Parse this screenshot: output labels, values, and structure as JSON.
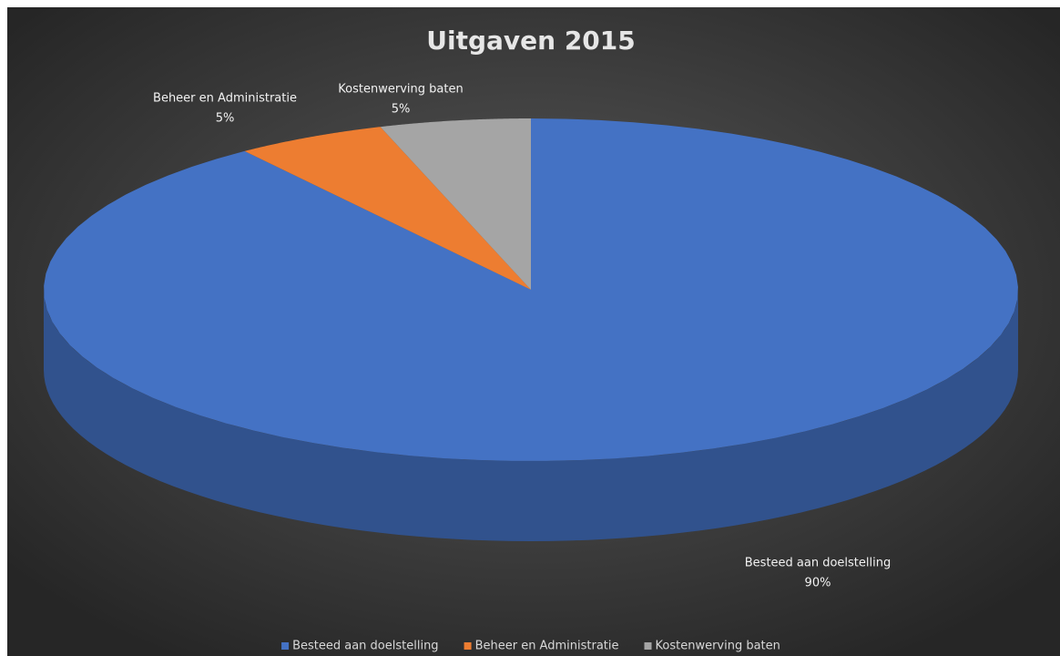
{
  "chart_data": {
    "type": "pie3d",
    "title": "Uitgaven 2015",
    "categories": [
      "Besteed aan doelstelling",
      "Beheer en Administratie",
      "Kostenwerving baten"
    ],
    "values": [
      90,
      5,
      5
    ],
    "value_labels": [
      "90%",
      "5%",
      "5%"
    ],
    "colors": [
      "#4472c4",
      "#ed7d31",
      "#a5a5a5"
    ],
    "legend": "bottom"
  }
}
